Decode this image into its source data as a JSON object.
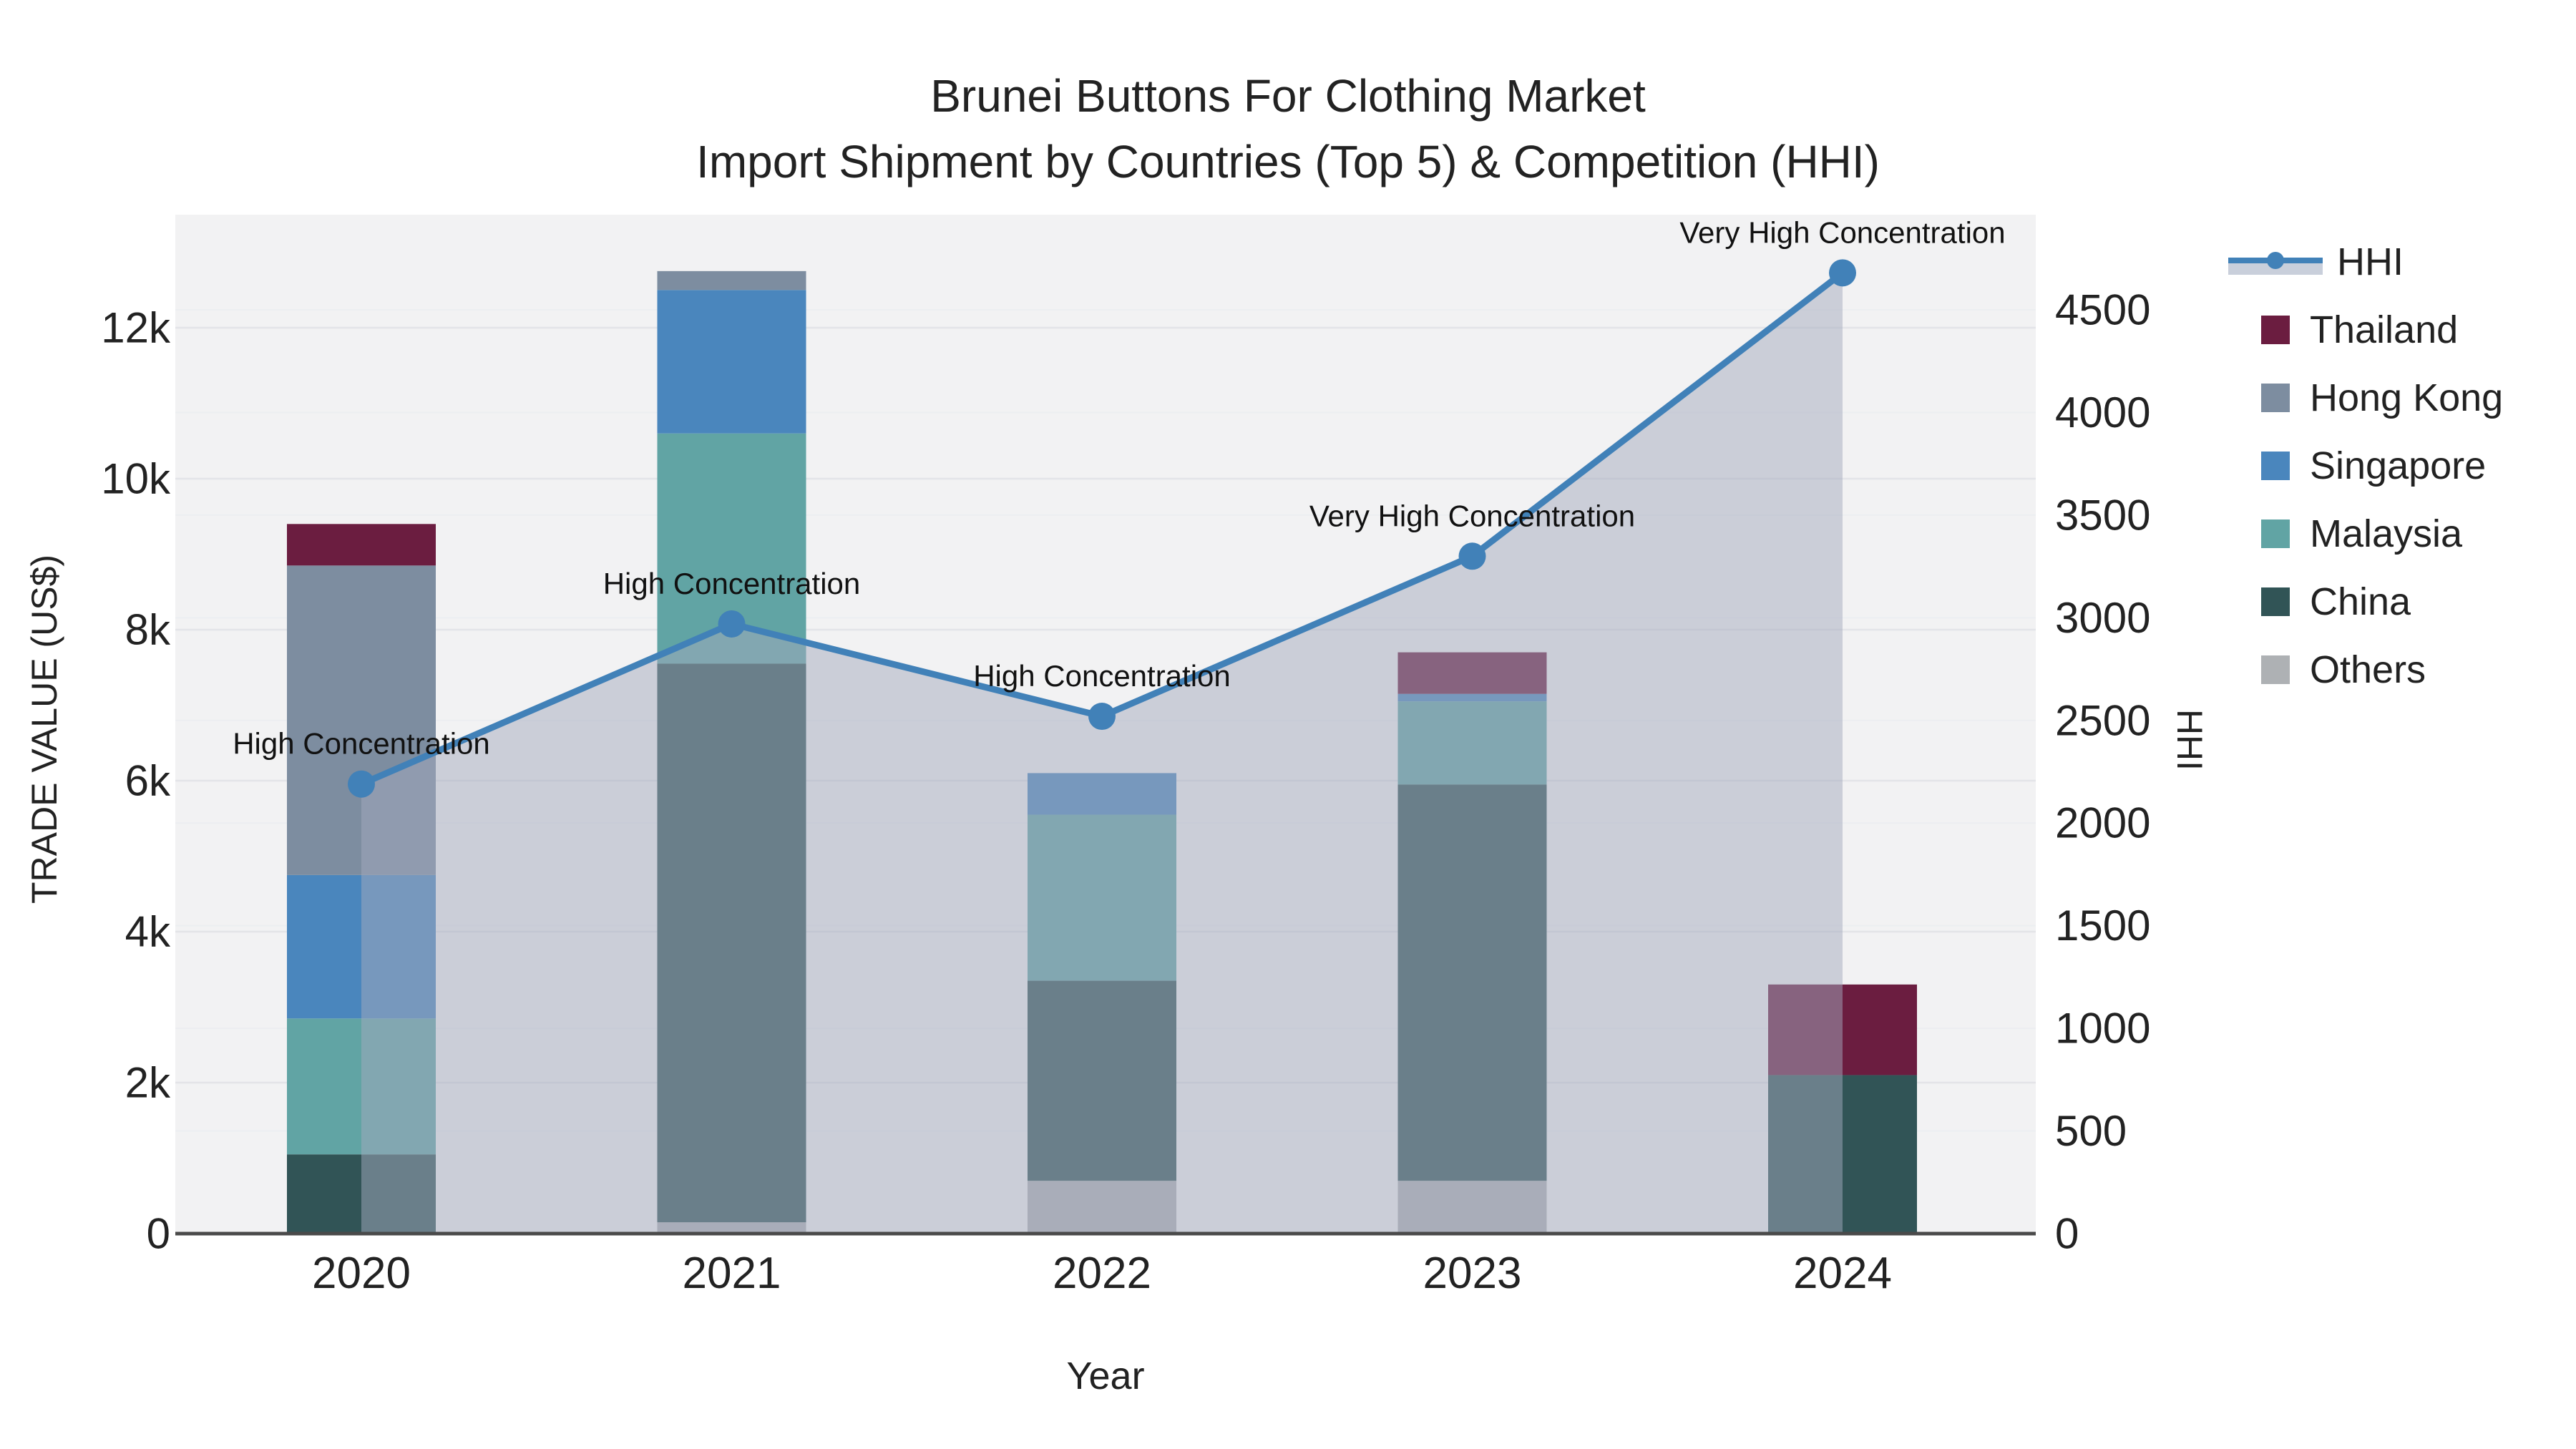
{
  "title": "Brunei Buttons For Clothing Market",
  "subtitle": "Import Shipment by Countries (Top 5) & Competition (HHI)",
  "axes": {
    "x_title": "Year",
    "y_left_title": "TRADE VALUE (US$)",
    "y_right_title": "HHI",
    "y_left_tick_labels": [
      "0",
      "2k",
      "4k",
      "6k",
      "8k",
      "10k",
      "12k"
    ],
    "y_left_tick_values": [
      0,
      2000,
      4000,
      6000,
      8000,
      10000,
      12000
    ],
    "y_right_tick_labels": [
      "0",
      "500",
      "1000",
      "1500",
      "2000",
      "2500",
      "3000",
      "3500",
      "4000",
      "4500"
    ],
    "y_right_tick_values": [
      0,
      500,
      1000,
      1500,
      2000,
      2500,
      3000,
      3500,
      4000,
      4500
    ]
  },
  "legend": {
    "items": [
      {
        "label": "HHI",
        "type": "line",
        "color": "#4181b8",
        "band": "#c9cfdb"
      },
      {
        "label": "Thailand",
        "type": "box",
        "color": "#6b1d40"
      },
      {
        "label": "Hong Kong",
        "type": "box",
        "color": "#7d8da0"
      },
      {
        "label": "Singapore",
        "type": "box",
        "color": "#4a86bd"
      },
      {
        "label": "Malaysia",
        "type": "box",
        "color": "#61a4a4"
      },
      {
        "label": "China",
        "type": "box",
        "color": "#315456"
      },
      {
        "label": "Others",
        "type": "box",
        "color": "#aeb1b4"
      }
    ]
  },
  "chart_data": {
    "type": "bar",
    "subtype": "stacked-bar-with-line",
    "categories": [
      "2020",
      "2021",
      "2022",
      "2023",
      "2024"
    ],
    "series": [
      {
        "name": "Others",
        "color": "#aeb1b4",
        "values": [
          0,
          150,
          700,
          700,
          0
        ]
      },
      {
        "name": "China",
        "color": "#315456",
        "values": [
          1050,
          7400,
          2650,
          5250,
          2100
        ]
      },
      {
        "name": "Malaysia",
        "color": "#61a4a4",
        "values": [
          1800,
          3050,
          2200,
          1100,
          0
        ]
      },
      {
        "name": "Singapore",
        "color": "#4a86bd",
        "values": [
          1900,
          1900,
          550,
          100,
          0
        ]
      },
      {
        "name": "Hong Kong",
        "color": "#7d8da0",
        "values": [
          4100,
          250,
          0,
          0,
          0
        ]
      },
      {
        "name": "Thailand",
        "color": "#6b1d40",
        "values": [
          550,
          0,
          0,
          550,
          1200
        ]
      }
    ],
    "line": {
      "name": "HHI",
      "values": [
        2190,
        2970,
        2520,
        3300,
        4680
      ],
      "color": "#4181b8",
      "fill": "rgba(164,170,190,0.5)",
      "axis": "right"
    },
    "annotations": [
      {
        "category": "2020",
        "text": "High Concentration"
      },
      {
        "category": "2021",
        "text": "High Concentration"
      },
      {
        "category": "2022",
        "text": "High Concentration"
      },
      {
        "category": "2023",
        "text": "Very High Concentration"
      },
      {
        "category": "2024",
        "text": "Very High Concentration"
      }
    ],
    "title": "Brunei Buttons For Clothing Market",
    "xlabel": "Year",
    "ylabel_left": "TRADE VALUE (US$)",
    "ylabel_right": "HHI",
    "ylim_left": [
      0,
      13450
    ],
    "ylim_right": [
      0,
      4965
    ],
    "grid": true,
    "legend_position": "right",
    "plot_bg": "#f2f2f3",
    "grid_color": "#e3e4e8",
    "axis_line_color": "#4a4a4a"
  }
}
